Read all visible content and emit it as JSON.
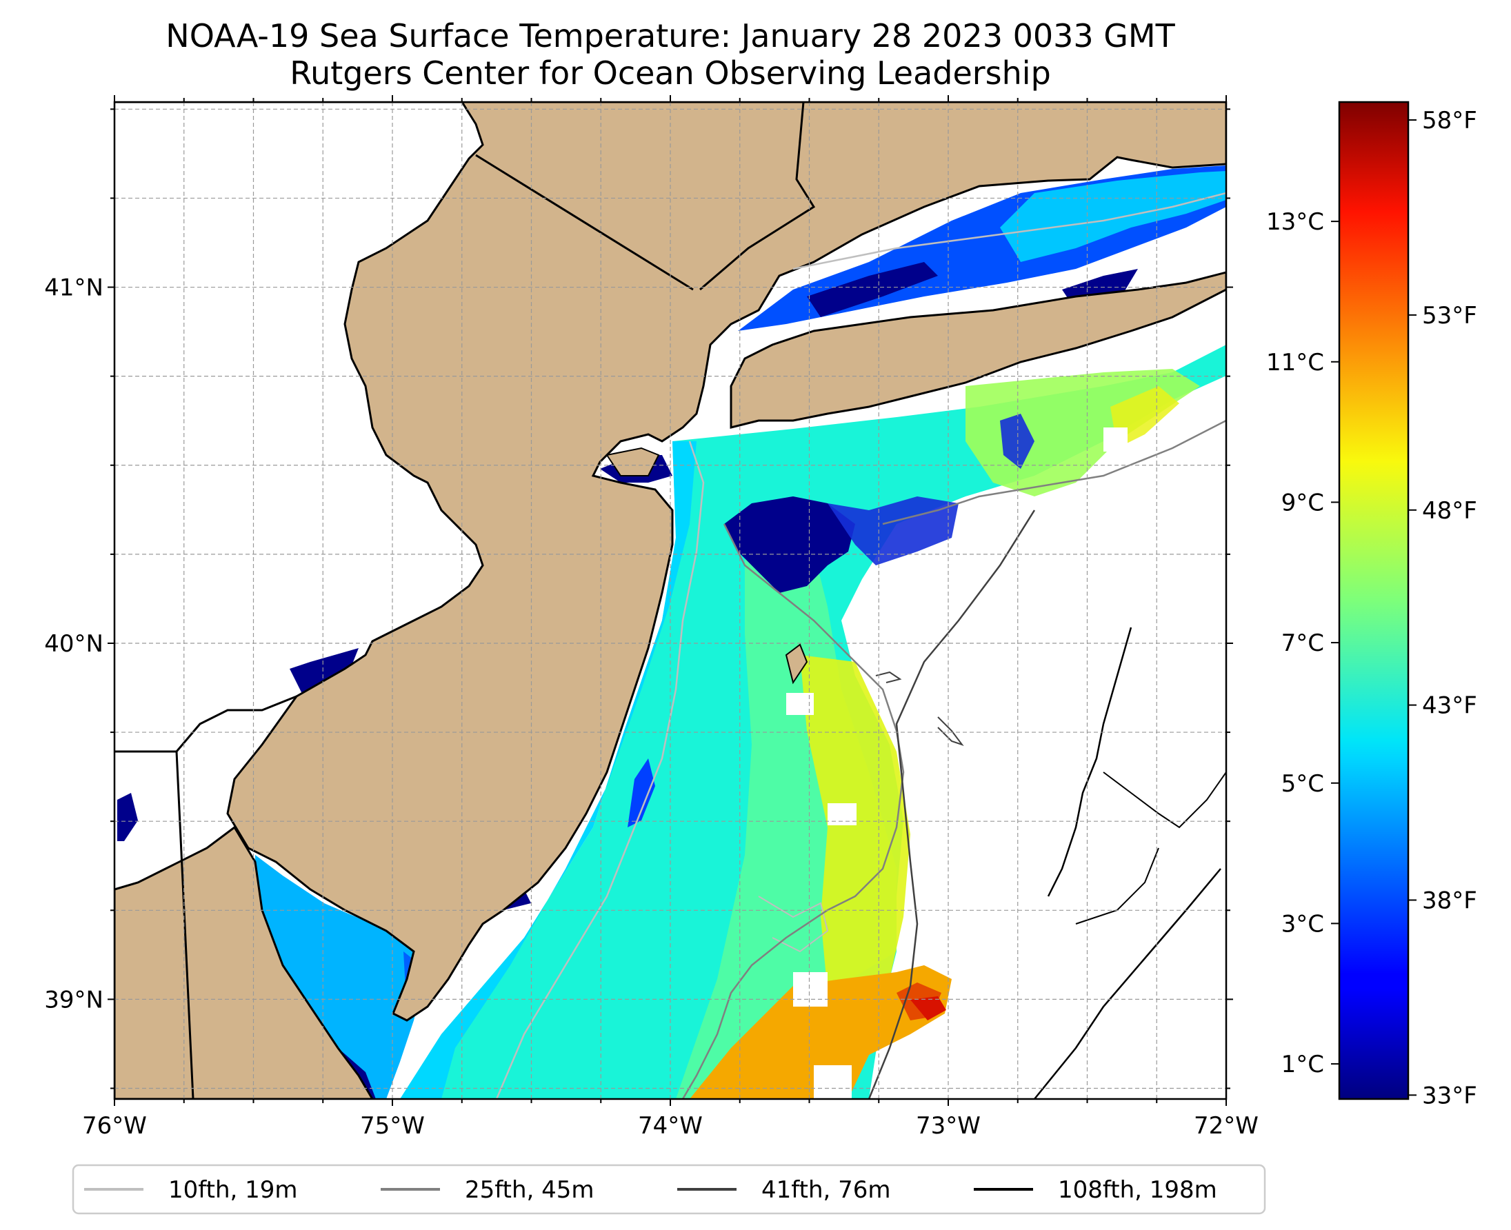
{
  "title": {
    "line1": "NOAA-19 Sea Surface Temperature: January 28 2023 0033 GMT",
    "line2": "Rutgers Center for Ocean Observing Leadership"
  },
  "map": {
    "lon_range": [
      -76,
      -72
    ],
    "lat_range": [
      38.72,
      41.52
    ],
    "lon_ticks": [
      {
        "value": -76,
        "label": "76°W"
      },
      {
        "value": -75,
        "label": "75°W"
      },
      {
        "value": -74,
        "label": "74°W"
      },
      {
        "value": -73,
        "label": "73°W"
      },
      {
        "value": -72,
        "label": "72°W"
      }
    ],
    "lat_ticks": [
      {
        "value": 41,
        "label": "41°N"
      },
      {
        "value": 40,
        "label": "40°N"
      },
      {
        "value": 39,
        "label": "39°N"
      }
    ],
    "grid": true,
    "land_color": "#d2b48c",
    "colormap": "jet"
  },
  "colorbar": {
    "range_c": [
      0.5,
      14.7
    ],
    "celsius_ticks": [
      {
        "value": 1,
        "label": "1°C"
      },
      {
        "value": 3,
        "label": "3°C"
      },
      {
        "value": 5,
        "label": "5°C"
      },
      {
        "value": 7,
        "label": "7°C"
      },
      {
        "value": 9,
        "label": "9°C"
      },
      {
        "value": 11,
        "label": "11°C"
      },
      {
        "value": 13,
        "label": "13°C"
      }
    ],
    "fahrenheit_ticks": [
      {
        "value": 33,
        "label": "33°F"
      },
      {
        "value": 38,
        "label": "38°F"
      },
      {
        "value": 43,
        "label": "43°F"
      },
      {
        "value": 48,
        "label": "48°F"
      },
      {
        "value": 53,
        "label": "53°F"
      },
      {
        "value": 58,
        "label": "58°F"
      }
    ]
  },
  "legend": {
    "placement": "bottom-center",
    "items": [
      {
        "label": "10fth, 19m",
        "color": "#bfbfbf"
      },
      {
        "label": "25fth, 45m",
        "color": "#808080"
      },
      {
        "label": "41fth, 76m",
        "color": "#404040"
      },
      {
        "label": "108fth, 198m",
        "color": "#000000"
      }
    ]
  }
}
